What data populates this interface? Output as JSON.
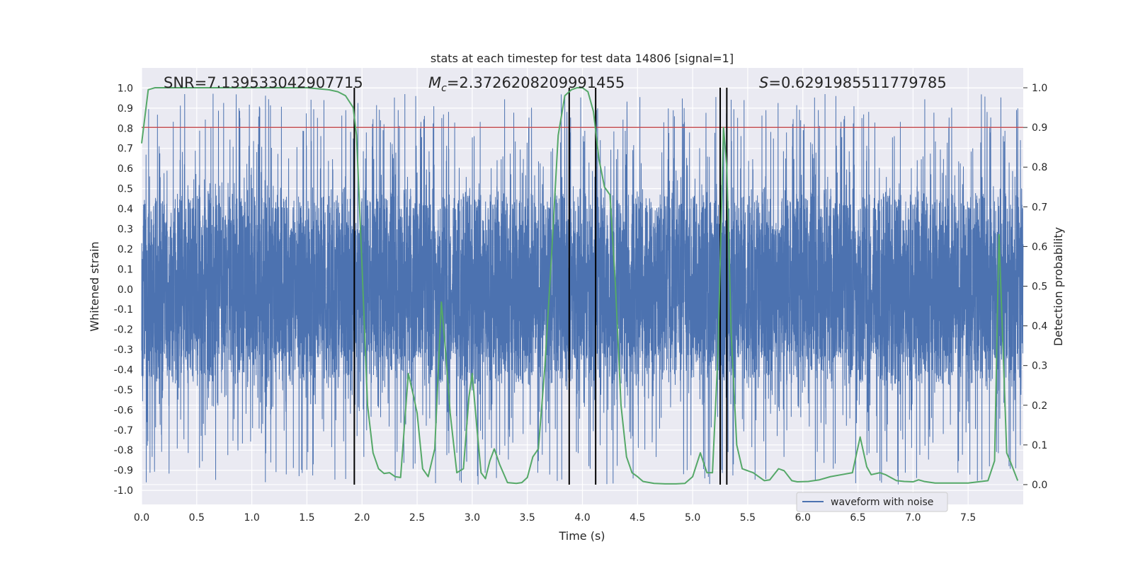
{
  "chart_data": {
    "type": "line",
    "title": "stats at each timestep for test data 14806 [signal=1]",
    "xlabel": "Time (s)",
    "ylabel_left": "Whitened strain",
    "ylabel_right": "Detection probability",
    "xlim": [
      0,
      8
    ],
    "ylim_left": [
      -1.07,
      1.1
    ],
    "ylim_right": [
      -0.05,
      1.05
    ],
    "x_ticks": [
      0.0,
      0.5,
      1.0,
      1.5,
      2.0,
      2.5,
      3.0,
      3.5,
      4.0,
      4.5,
      5.0,
      5.5,
      6.0,
      6.5,
      7.0,
      7.5
    ],
    "x_tick_labels": [
      "0.0",
      "0.5",
      "1.0",
      "1.5",
      "2.0",
      "2.5",
      "3.0",
      "3.5",
      "4.0",
      "4.5",
      "5.0",
      "5.5",
      "6.0",
      "6.5",
      "7.0",
      "7.5"
    ],
    "y_left_ticks": [
      1.0,
      0.9,
      0.8,
      0.7,
      0.6,
      0.5,
      0.4,
      0.3,
      0.2,
      0.1,
      0.0,
      -0.1,
      -0.2,
      -0.3,
      -0.4,
      -0.5,
      -0.6,
      -0.7,
      -0.8,
      -0.9,
      -1.0
    ],
    "y_left_tick_labels": [
      "1.0",
      "0.9",
      "0.8",
      "0.7",
      "0.6",
      "0.5",
      "0.4",
      "0.3",
      "0.2",
      "0.1",
      "0.0",
      "-0.1",
      "-0.2",
      "-0.3",
      "-0.4",
      "-0.5",
      "-0.6",
      "-0.7",
      "-0.8",
      "-0.9",
      "-1.0"
    ],
    "y_right_ticks": [
      1.0,
      0.9,
      0.8,
      0.7,
      0.6,
      0.5,
      0.4,
      0.3,
      0.2,
      0.1,
      0.0
    ],
    "y_right_tick_labels": [
      "1.0",
      "0.9",
      "0.8",
      "0.7",
      "0.6",
      "0.5",
      "0.4",
      "0.3",
      "0.2",
      "0.1",
      "0.0"
    ],
    "threshold": 0.9,
    "detection_bounds": [
      1.93,
      3.88,
      4.12,
      5.25,
      5.31
    ],
    "detection_probability": {
      "x": [
        0.0,
        0.06,
        0.12,
        0.2,
        0.3,
        0.5,
        0.8,
        1.0,
        1.3,
        1.5,
        1.7,
        1.78,
        1.85,
        1.92,
        1.95,
        2.0,
        2.05,
        2.1,
        2.15,
        2.2,
        2.25,
        2.3,
        2.35,
        2.42,
        2.47,
        2.5,
        2.55,
        2.6,
        2.66,
        2.72,
        2.76,
        2.8,
        2.86,
        2.92,
        2.97,
        3.0,
        3.04,
        3.08,
        3.12,
        3.16,
        3.2,
        3.25,
        3.32,
        3.4,
        3.45,
        3.5,
        3.55,
        3.6,
        3.66,
        3.72,
        3.78,
        3.84,
        3.9,
        3.95,
        4.0,
        4.05,
        4.1,
        4.15,
        4.2,
        4.25,
        4.3,
        4.35,
        4.4,
        4.45,
        4.5,
        4.55,
        4.65,
        4.75,
        4.85,
        4.93,
        5.0,
        5.07,
        5.13,
        5.18,
        5.23,
        5.28,
        5.31,
        5.35,
        5.4,
        5.45,
        5.55,
        5.65,
        5.7,
        5.78,
        5.83,
        5.9,
        5.95,
        6.05,
        6.15,
        6.25,
        6.35,
        6.45,
        6.52,
        6.58,
        6.62,
        6.7,
        6.75,
        6.85,
        6.92,
        7.0,
        7.05,
        7.1,
        7.2,
        7.3,
        7.5,
        7.68,
        7.74,
        7.78,
        7.85,
        7.88,
        7.95
      ],
      "y": [
        0.86,
        0.995,
        1.0,
        1.0,
        1.0,
        1.0,
        1.0,
        1.0,
        1.0,
        1.0,
        0.995,
        0.99,
        0.98,
        0.95,
        0.88,
        0.55,
        0.2,
        0.08,
        0.04,
        0.028,
        0.03,
        0.02,
        0.018,
        0.28,
        0.22,
        0.18,
        0.04,
        0.02,
        0.09,
        0.46,
        0.33,
        0.18,
        0.03,
        0.04,
        0.22,
        0.28,
        0.15,
        0.03,
        0.015,
        0.06,
        0.09,
        0.05,
        0.005,
        0.003,
        0.005,
        0.018,
        0.07,
        0.09,
        0.3,
        0.58,
        0.88,
        0.98,
        0.995,
        1.0,
        1.0,
        0.99,
        0.94,
        0.82,
        0.75,
        0.73,
        0.5,
        0.2,
        0.07,
        0.03,
        0.02,
        0.008,
        0.003,
        0.002,
        0.002,
        0.003,
        0.02,
        0.08,
        0.03,
        0.03,
        0.33,
        0.9,
        0.8,
        0.38,
        0.1,
        0.04,
        0.03,
        0.01,
        0.012,
        0.04,
        0.035,
        0.01,
        0.007,
        0.008,
        0.012,
        0.02,
        0.025,
        0.03,
        0.12,
        0.045,
        0.025,
        0.03,
        0.025,
        0.01,
        0.008,
        0.007,
        0.012,
        0.008,
        0.004,
        0.004,
        0.004,
        0.01,
        0.06,
        0.63,
        0.08,
        0.06,
        0.01
      ],
      "color": "#55a868"
    },
    "waveform": {
      "label": "waveform with noise",
      "color": "#4c72b0",
      "fs": 1024,
      "core_abs_max": 0.35,
      "peak_range": [
        0.4,
        0.98
      ],
      "note": "high-frequency noisy strain, dense band within roughly ±0.4 with spikes reaching about ±0.97"
    },
    "legend": {
      "entries": [
        "waveform with noise"
      ],
      "location": "lower-center"
    },
    "annotations": [
      {
        "kind": "plain",
        "text": "SNR=7.139533042907715"
      },
      {
        "kind": "subscript",
        "main": "M",
        "sub": "c",
        "rest": "=2.3726208209991455"
      },
      {
        "kind": "italic",
        "main": "S",
        "rest": "=0.6291985511779785"
      }
    ],
    "colors": {
      "background": "#eaeaf2",
      "grid": "#ffffff",
      "threshold": "#c44e52",
      "bounds": "#000000",
      "text": "#262626"
    }
  }
}
